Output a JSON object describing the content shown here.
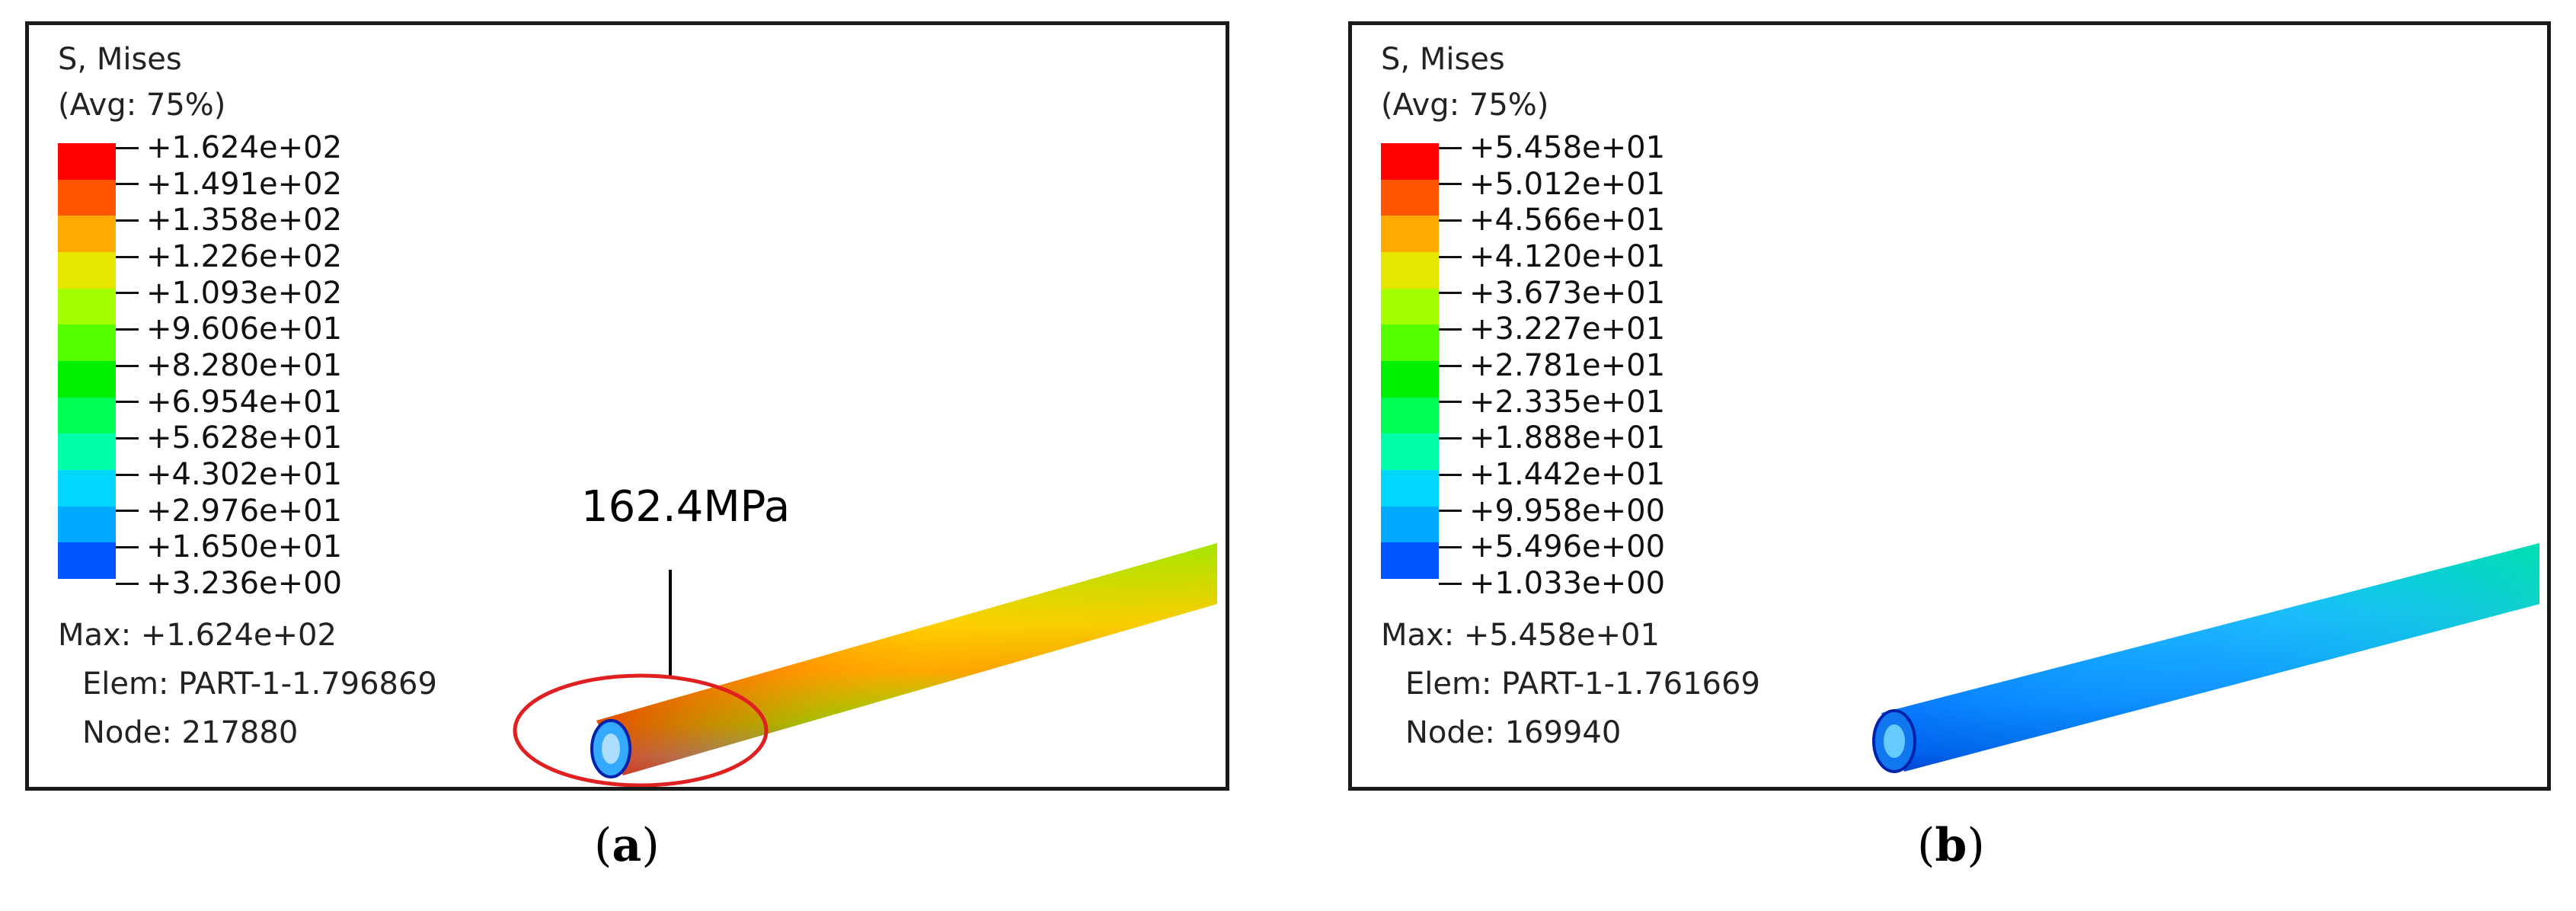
{
  "panels": [
    {
      "id": "a",
      "header": "S, Mises",
      "subheader": "(Avg: 75%)",
      "legend_values": [
        "+1.624e+02",
        "+1.491e+02",
        "+1.358e+02",
        "+1.226e+02",
        "+1.093e+02",
        "+9.606e+01",
        "+8.280e+01",
        "+6.954e+01",
        "+5.628e+01",
        "+4.302e+01",
        "+2.976e+01",
        "+1.650e+01",
        "+3.236e+00"
      ],
      "max_text": "Max: +1.624e+02",
      "elem_text": "Elem: PART-1-1.796869",
      "node_text": "Node: 217880",
      "annotation": "162.4MPa",
      "caption_letter": "a"
    },
    {
      "id": "b",
      "header": "S, Mises",
      "subheader": "(Avg: 75%)",
      "legend_values": [
        "+5.458e+01",
        "+5.012e+01",
        "+4.566e+01",
        "+4.120e+01",
        "+3.673e+01",
        "+3.227e+01",
        "+2.781e+01",
        "+2.335e+01",
        "+1.888e+01",
        "+1.442e+01",
        "+9.958e+00",
        "+5.496e+00",
        "+1.033e+00"
      ],
      "max_text": "Max: +5.458e+01",
      "elem_text": "Elem: PART-1-1.761669",
      "node_text": "Node: 169940",
      "caption_letter": "b"
    }
  ],
  "colormap": [
    "#ff0000",
    "#ff5500",
    "#ffaa00",
    "#e6e600",
    "#a6ff00",
    "#55ff00",
    "#00f000",
    "#00ff55",
    "#00ffaa",
    "#00d6ff",
    "#00aaff",
    "#0055ff",
    "#0000ff"
  ],
  "annotation_color": "#e02020"
}
